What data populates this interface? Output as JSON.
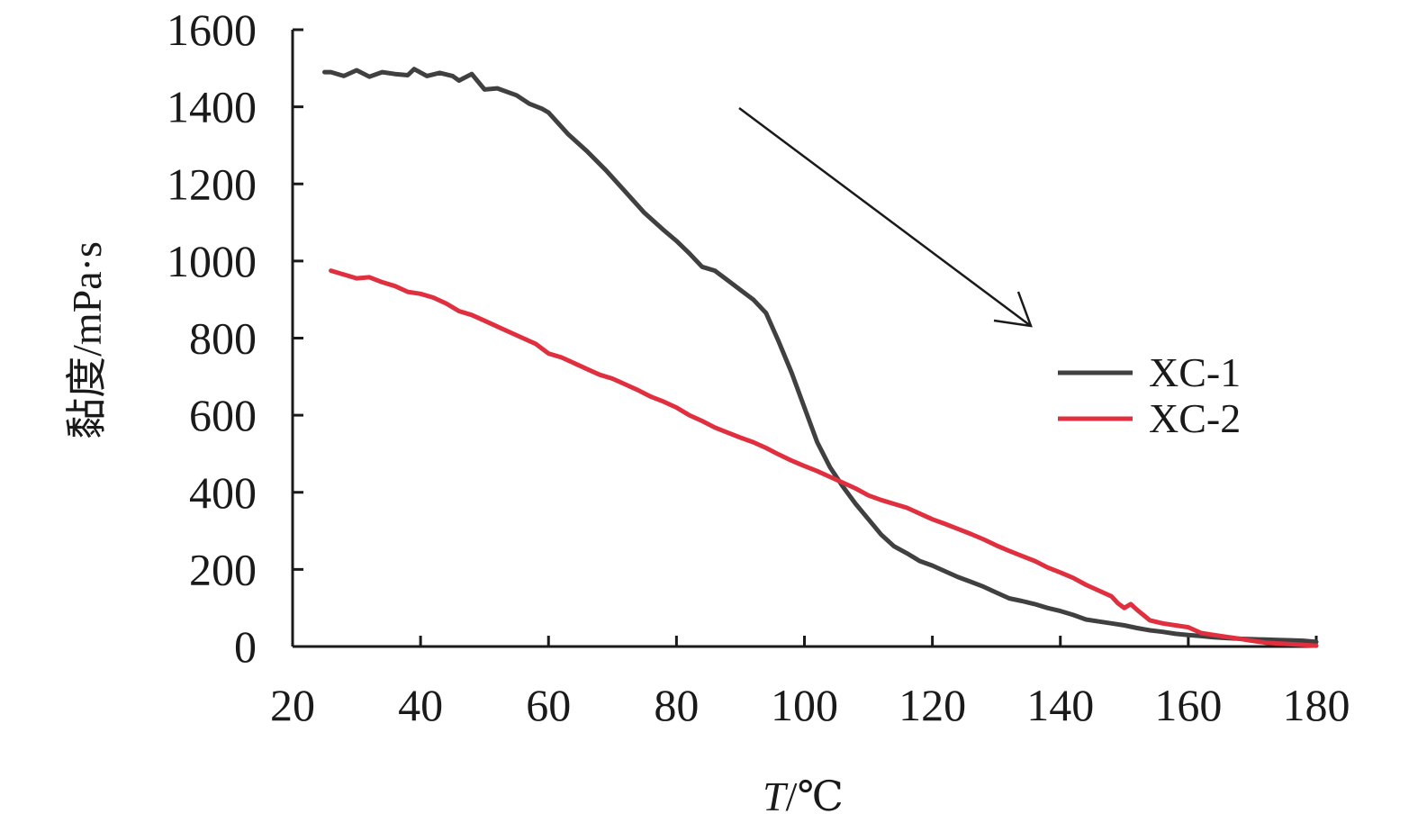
{
  "chart_data": {
    "type": "line",
    "xlabel_italic": "T",
    "xlabel_rest": "/℃",
    "ylabel": "黏度/mPa·s",
    "xlim": [
      20,
      180
    ],
    "ylim": [
      0,
      1600
    ],
    "xticks": [
      20,
      40,
      60,
      80,
      100,
      120,
      140,
      160,
      180
    ],
    "yticks": [
      0,
      200,
      400,
      600,
      800,
      1000,
      1200,
      1400,
      1600
    ],
    "grid": false,
    "legend_position": "right",
    "annotation": "downward arrow",
    "series": [
      {
        "name": "XC-1",
        "color": "#404040",
        "x": [
          25,
          26,
          28,
          30,
          32,
          34,
          36,
          38,
          39,
          41,
          43,
          45,
          46,
          48,
          50,
          52,
          55,
          57,
          59,
          60,
          63,
          66,
          69,
          72,
          75,
          78,
          80,
          82,
          84,
          86,
          88,
          90,
          92,
          94,
          96,
          98,
          100,
          102,
          104,
          106,
          108,
          110,
          112,
          114,
          116,
          118,
          120,
          122,
          124,
          126,
          128,
          130,
          132,
          134,
          136,
          138,
          140,
          142,
          144,
          146,
          148,
          150,
          152,
          154,
          156,
          158,
          160,
          162,
          164,
          166,
          168,
          170,
          172,
          174,
          176,
          178,
          180
        ],
        "y": [
          1490,
          1490,
          1480,
          1495,
          1478,
          1490,
          1485,
          1482,
          1498,
          1480,
          1488,
          1480,
          1468,
          1485,
          1445,
          1448,
          1430,
          1408,
          1395,
          1385,
          1330,
          1285,
          1235,
          1180,
          1125,
          1080,
          1052,
          1020,
          985,
          975,
          950,
          925,
          900,
          865,
          790,
          710,
          620,
          530,
          465,
          415,
          370,
          330,
          290,
          260,
          242,
          222,
          210,
          195,
          180,
          168,
          155,
          140,
          125,
          118,
          110,
          100,
          92,
          82,
          70,
          65,
          60,
          55,
          48,
          42,
          38,
          33,
          30,
          27,
          24,
          22,
          20,
          19,
          18,
          17,
          16,
          15,
          12
        ]
      },
      {
        "name": "XC-2",
        "color": "#e03040",
        "x": [
          26,
          28,
          30,
          32,
          34,
          36,
          38,
          40,
          42,
          44,
          46,
          48,
          50,
          52,
          54,
          56,
          58,
          60,
          62,
          64,
          66,
          68,
          70,
          72,
          74,
          76,
          78,
          80,
          82,
          84,
          86,
          88,
          90,
          92,
          94,
          96,
          98,
          100,
          102,
          104,
          106,
          108,
          110,
          112,
          114,
          116,
          118,
          120,
          122,
          124,
          126,
          128,
          130,
          132,
          134,
          136,
          138,
          140,
          142,
          144,
          146,
          148,
          149,
          150,
          151,
          152,
          154,
          156,
          158,
          160,
          162,
          164,
          166,
          168,
          170,
          172,
          174,
          176,
          178,
          180
        ],
        "y": [
          975,
          965,
          955,
          958,
          945,
          935,
          920,
          915,
          905,
          890,
          870,
          860,
          845,
          830,
          815,
          800,
          785,
          760,
          750,
          735,
          720,
          705,
          695,
          680,
          665,
          648,
          635,
          620,
          600,
          585,
          568,
          555,
          542,
          530,
          515,
          498,
          482,
          468,
          455,
          440,
          425,
          410,
          392,
          380,
          370,
          360,
          345,
          330,
          318,
          305,
          292,
          278,
          262,
          248,
          235,
          222,
          205,
          192,
          178,
          160,
          145,
          130,
          112,
          100,
          110,
          95,
          68,
          60,
          55,
          50,
          35,
          30,
          25,
          20,
          15,
          10,
          8,
          6,
          4,
          2
        ]
      }
    ]
  }
}
